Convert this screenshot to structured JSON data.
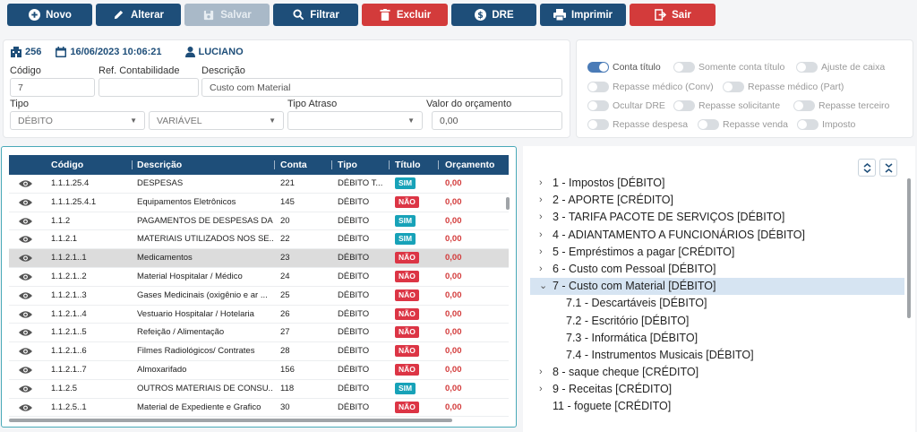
{
  "toolbar": {
    "buttons": [
      {
        "label": "Novo",
        "icon": "plus-circle-icon"
      },
      {
        "label": "Alterar",
        "icon": "pencil-icon"
      },
      {
        "label": "Salvar",
        "icon": "floppy-icon"
      },
      {
        "label": "Filtrar",
        "icon": "search-icon"
      },
      {
        "label": "Excluir",
        "icon": "trash-icon"
      },
      {
        "label": "DRE",
        "icon": "dollar-icon"
      },
      {
        "label": "Imprimir",
        "icon": "printer-icon"
      },
      {
        "label": "Sair",
        "icon": "exit-icon"
      }
    ],
    "colors": {
      "primary": "#1e4e79",
      "danger": "#d33b3b",
      "disabled": "#a9b9c8"
    }
  },
  "record": {
    "id": "256",
    "datetime": "16/06/2023 10:06:21",
    "user": "LUCIANO"
  },
  "form": {
    "codigo_label": "Código",
    "codigo_value": "7",
    "ref_label": "Ref. Contabilidade",
    "ref_value": "",
    "descricao_label": "Descrição",
    "descricao_value": "Custo com Material",
    "tipo_label": "Tipo",
    "tipo_value": "DÉBITO",
    "tipo2_value": "VARIÁVEL",
    "tipo_atraso_label": "Tipo Atraso",
    "tipo_atraso_value": "",
    "valor_label": "Valor do orçamento",
    "valor_value": "0,00"
  },
  "toggles": [
    {
      "label": "Conta título",
      "on": true
    },
    {
      "label": "Somente conta título",
      "on": false
    },
    {
      "label": "Ajuste de caixa",
      "on": false
    },
    {
      "label": "Repasse médico (Conv)",
      "on": false
    },
    {
      "label": "Repasse médico (Part)",
      "on": false
    },
    {
      "label": "Ocultar DRE",
      "on": false
    },
    {
      "label": "Repasse solicitante",
      "on": false
    },
    {
      "label": "Repasse terceiro",
      "on": false
    },
    {
      "label": "Repasse despesa",
      "on": false
    },
    {
      "label": "Repasse venda",
      "on": false
    },
    {
      "label": "Imposto",
      "on": false
    }
  ],
  "table": {
    "headers": [
      "Código",
      "Descrição",
      "Conta",
      "Tipo",
      "Título",
      "Orçamento"
    ],
    "rows": [
      {
        "codigo": "1.1.1.25.4",
        "descricao": "DESPESAS",
        "conta": "221",
        "tipo": "DÉBITO T...",
        "titulo": "SIM",
        "orcamento": "0,00"
      },
      {
        "codigo": "1.1.1.25.4.1",
        "descricao": "Equipamentos Eletrônicos",
        "conta": "145",
        "tipo": "DÉBITO",
        "titulo": "NÃO",
        "orcamento": "0,00"
      },
      {
        "codigo": "1.1.2",
        "descricao": "PAGAMENTOS DE DESPESAS DA...",
        "conta": "20",
        "tipo": "DÉBITO",
        "titulo": "SIM",
        "orcamento": "0,00"
      },
      {
        "codigo": "1.1.2.1",
        "descricao": "MATERIAIS UTILIZADOS NOS SE...",
        "conta": "22",
        "tipo": "DÉBITO",
        "titulo": "SIM",
        "orcamento": "0,00"
      },
      {
        "codigo": "1.1.2.1..1",
        "descricao": "Medicamentos",
        "conta": "23",
        "tipo": "DÉBITO",
        "titulo": "NÃO",
        "orcamento": "0,00",
        "selected": true
      },
      {
        "codigo": "1.1.2.1..2",
        "descricao": "Material Hospitalar / Médico",
        "conta": "24",
        "tipo": "DÉBITO",
        "titulo": "NÃO",
        "orcamento": "0,00"
      },
      {
        "codigo": "1.1.2.1..3",
        "descricao": "Gases Medicinais (oxigênio e ar ...",
        "conta": "25",
        "tipo": "DÉBITO",
        "titulo": "NÃO",
        "orcamento": "0,00"
      },
      {
        "codigo": "1.1.2.1..4",
        "descricao": "Vestuario Hospitalar / Hotelaria",
        "conta": "26",
        "tipo": "DÉBITO",
        "titulo": "NÃO",
        "orcamento": "0,00"
      },
      {
        "codigo": "1.1.2.1..5",
        "descricao": "Refeição / Alimentação",
        "conta": "27",
        "tipo": "DÉBITO",
        "titulo": "NÃO",
        "orcamento": "0,00"
      },
      {
        "codigo": "1.1.2.1..6",
        "descricao": "Filmes Radiológicos/ Contrates",
        "conta": "28",
        "tipo": "DÉBITO",
        "titulo": "NÃO",
        "orcamento": "0,00"
      },
      {
        "codigo": "1.1.2.1..7",
        "descricao": "Almoxarifado",
        "conta": "156",
        "tipo": "DÉBITO",
        "titulo": "NÃO",
        "orcamento": "0,00"
      },
      {
        "codigo": "1.1.2.5",
        "descricao": "OUTROS MATERIAIS DE CONSU...",
        "conta": "118",
        "tipo": "DÉBITO",
        "titulo": "SIM",
        "orcamento": "0,00"
      },
      {
        "codigo": "1.1.2.5..1",
        "descricao": "Material de Expediente e Grafico",
        "conta": "30",
        "tipo": "DÉBITO",
        "titulo": "NÃO",
        "orcamento": "0,00"
      }
    ]
  },
  "tree": {
    "nodes": [
      {
        "label": "1 - Impostos [DÉBITO]",
        "chevron": "›",
        "level": 0
      },
      {
        "label": "2 - APORTE [CRÉDITO]",
        "chevron": "›",
        "level": 0
      },
      {
        "label": "3 - TARIFA PACOTE DE SERVIÇOS [DÉBITO]",
        "chevron": "›",
        "level": 0
      },
      {
        "label": "4 - ADIANTAMENTO A FUNCIONÁRIOS [DÉBITO]",
        "chevron": "›",
        "level": 0
      },
      {
        "label": "5 - Empréstimos a pagar [CRÉDITO]",
        "chevron": "›",
        "level": 0
      },
      {
        "label": "6 - Custo com Pessoal [DÉBITO]",
        "chevron": "›",
        "level": 0
      },
      {
        "label": "7 - Custo com Material [DÉBITO]",
        "chevron": "⌄",
        "level": 0,
        "active": true
      },
      {
        "label": "7.1 - Descartáveis [DÉBITO]",
        "chevron": "",
        "level": 1
      },
      {
        "label": "7.2 - Escritório [DÉBITO]",
        "chevron": "",
        "level": 1
      },
      {
        "label": "7.3 - Informática [DÉBITO]",
        "chevron": "",
        "level": 1
      },
      {
        "label": "7.4 - Instrumentos Musicais [DÉBITO]",
        "chevron": "",
        "level": 1
      },
      {
        "label": "8 - saque cheque [CRÉDITO]",
        "chevron": "›",
        "level": 0
      },
      {
        "label": "9 - Receitas [CRÉDITO]",
        "chevron": "›",
        "level": 0
      },
      {
        "label": "11 - foguete [CRÉDITO]",
        "chevron": "",
        "level": 0
      }
    ]
  }
}
